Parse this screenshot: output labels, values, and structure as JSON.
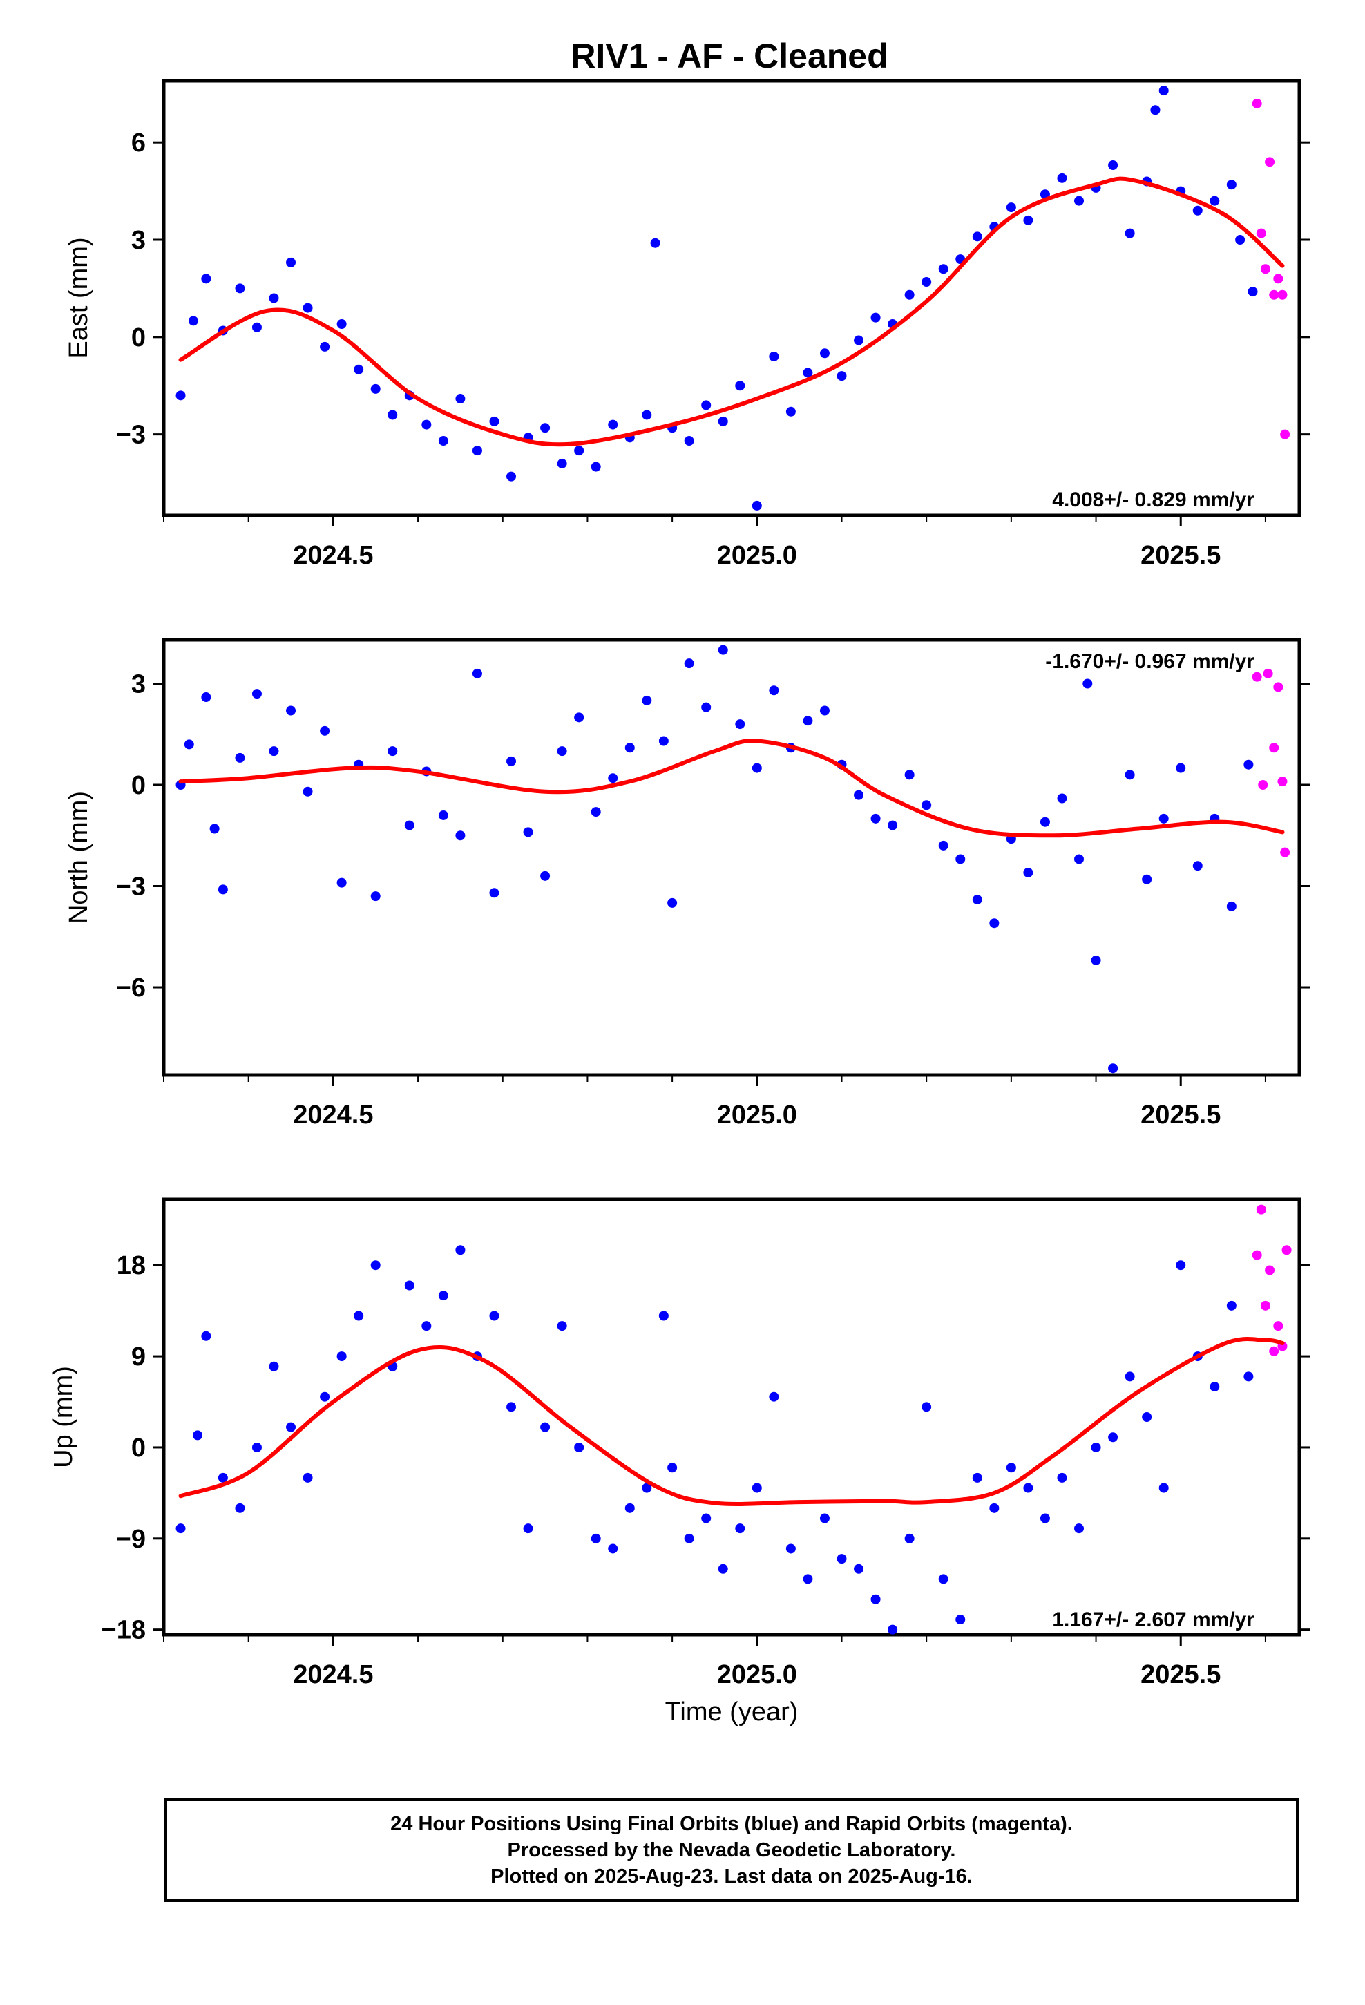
{
  "title": "RIV1  - AF - Cleaned",
  "chart_data": [
    {
      "type": "scatter",
      "panel": "east",
      "ylabel": "East (mm)",
      "xlabel": "",
      "xlim": [
        2024.3,
        2025.64
      ],
      "ylim": [
        -5.5,
        7.9
      ],
      "xticks": [
        2024.5,
        2025.0,
        2025.5
      ],
      "xtick_labels": [
        "2024.5",
        "2025.0",
        "2025.5"
      ],
      "yticks": [
        -3,
        0,
        3,
        6
      ],
      "ytick_labels": [
        "−3",
        "0",
        "3",
        "6"
      ],
      "rate": "4.008+/- 0.829 mm/yr",
      "rate_position": "bottom-right",
      "fit_color": "#ff0000",
      "final_color": "#0000ff",
      "rapid_color": "#ff00ff",
      "fit_curve": {
        "x": [
          2024.32,
          2024.42,
          2024.5,
          2024.6,
          2024.7,
          2024.78,
          2024.9,
          2025.0,
          2025.1,
          2025.2,
          2025.3,
          2025.4,
          2025.45,
          2025.55,
          2025.62
        ],
        "y": [
          -0.7,
          0.8,
          0.2,
          -1.9,
          -3.0,
          -3.3,
          -2.7,
          -1.9,
          -0.8,
          1.1,
          3.7,
          4.7,
          4.8,
          3.8,
          2.2
        ]
      },
      "final_points": {
        "x": [
          2024.32,
          2024.335,
          2024.35,
          2024.37,
          2024.39,
          2024.41,
          2024.43,
          2024.45,
          2024.47,
          2024.49,
          2024.51,
          2024.53,
          2024.55,
          2024.57,
          2024.59,
          2024.61,
          2024.63,
          2024.65,
          2024.67,
          2024.69,
          2024.71,
          2024.73,
          2024.75,
          2024.77,
          2024.79,
          2024.81,
          2024.83,
          2024.85,
          2024.87,
          2024.88,
          2024.9,
          2024.92,
          2024.94,
          2024.96,
          2024.98,
          2025.0,
          2025.02,
          2025.04,
          2025.06,
          2025.08,
          2025.1,
          2025.12,
          2025.14,
          2025.16,
          2025.18,
          2025.2,
          2025.22,
          2025.24,
          2025.26,
          2025.28,
          2025.3,
          2025.32,
          2025.34,
          2025.36,
          2025.38,
          2025.4,
          2025.42,
          2025.44,
          2025.46,
          2025.47,
          2025.48,
          2025.5,
          2025.52,
          2025.54,
          2025.56,
          2025.57,
          2025.585
        ],
        "y": [
          -1.8,
          0.5,
          1.8,
          0.2,
          1.5,
          0.3,
          1.2,
          2.3,
          0.9,
          -0.3,
          0.4,
          -1.0,
          -1.6,
          -2.4,
          -1.8,
          -2.7,
          -3.2,
          -1.9,
          -3.5,
          -2.6,
          -4.3,
          -3.1,
          -2.8,
          -3.9,
          -3.5,
          -4.0,
          -2.7,
          -3.1,
          -2.4,
          2.9,
          -2.8,
          -3.2,
          -2.1,
          -2.6,
          -1.5,
          -5.2,
          -0.6,
          -2.3,
          -1.1,
          -0.5,
          -1.2,
          -0.1,
          0.6,
          0.4,
          1.3,
          1.7,
          2.1,
          2.4,
          3.1,
          3.4,
          4.0,
          3.6,
          4.4,
          4.9,
          4.2,
          4.6,
          5.3,
          3.2,
          4.8,
          7.0,
          7.6,
          4.5,
          3.9,
          4.2,
          4.7,
          3.0,
          1.4
        ]
      },
      "rapid_points": {
        "x": [
          2025.59,
          2025.595,
          2025.6,
          2025.605,
          2025.61,
          2025.615,
          2025.62,
          2025.623
        ],
        "y": [
          7.2,
          3.2,
          2.1,
          5.4,
          1.3,
          1.8,
          1.3,
          -3.0
        ]
      }
    },
    {
      "type": "scatter",
      "panel": "north",
      "ylabel": "North (mm)",
      "xlabel": "",
      "xlim": [
        2024.3,
        2025.64
      ],
      "ylim": [
        -8.6,
        4.3
      ],
      "xticks": [
        2024.5,
        2025.0,
        2025.5
      ],
      "xtick_labels": [
        "2024.5",
        "2025.0",
        "2025.5"
      ],
      "yticks": [
        -6,
        -3,
        0,
        3
      ],
      "ytick_labels": [
        "−6",
        "−3",
        "0",
        "3"
      ],
      "rate": "-1.670+/- 0.967 mm/yr",
      "rate_position": "top-right",
      "fit_color": "#ff0000",
      "final_color": "#0000ff",
      "rapid_color": "#ff00ff",
      "fit_curve": {
        "x": [
          2024.32,
          2024.4,
          2024.52,
          2024.6,
          2024.75,
          2024.85,
          2024.95,
          2025.0,
          2025.08,
          2025.15,
          2025.25,
          2025.35,
          2025.45,
          2025.55,
          2025.62
        ],
        "y": [
          0.1,
          0.2,
          0.5,
          0.4,
          -0.2,
          0.1,
          1.0,
          1.3,
          0.8,
          -0.3,
          -1.3,
          -1.5,
          -1.3,
          -1.1,
          -1.4
        ]
      },
      "final_points": {
        "x": [
          2024.32,
          2024.33,
          2024.35,
          2024.36,
          2024.37,
          2024.39,
          2024.41,
          2024.43,
          2024.45,
          2024.47,
          2024.49,
          2024.51,
          2024.53,
          2024.55,
          2024.57,
          2024.59,
          2024.61,
          2024.63,
          2024.65,
          2024.67,
          2024.69,
          2024.71,
          2024.73,
          2024.75,
          2024.77,
          2024.79,
          2024.81,
          2024.83,
          2024.85,
          2024.87,
          2024.89,
          2024.9,
          2024.92,
          2024.94,
          2024.96,
          2024.98,
          2025.0,
          2025.02,
          2025.04,
          2025.06,
          2025.08,
          2025.1,
          2025.12,
          2025.14,
          2025.16,
          2025.18,
          2025.2,
          2025.22,
          2025.24,
          2025.26,
          2025.28,
          2025.3,
          2025.32,
          2025.34,
          2025.36,
          2025.38,
          2025.39,
          2025.4,
          2025.42,
          2025.44,
          2025.46,
          2025.48,
          2025.5,
          2025.52,
          2025.54,
          2025.56,
          2025.58
        ],
        "y": [
          0.0,
          1.2,
          2.6,
          -1.3,
          -3.1,
          0.8,
          2.7,
          1.0,
          2.2,
          -0.2,
          1.6,
          -2.9,
          0.6,
          -3.3,
          1.0,
          -1.2,
          0.4,
          -0.9,
          -1.5,
          3.3,
          -3.2,
          0.7,
          -1.4,
          -2.7,
          1.0,
          2.0,
          -0.8,
          0.2,
          1.1,
          2.5,
          1.3,
          -3.5,
          3.6,
          2.3,
          4.0,
          1.8,
          0.5,
          2.8,
          1.1,
          1.9,
          2.2,
          0.6,
          -0.3,
          -1.0,
          -1.2,
          0.3,
          -0.6,
          -1.8,
          -2.2,
          -3.4,
          -4.1,
          -1.6,
          -2.6,
          -1.1,
          -0.4,
          -2.2,
          3.0,
          -5.2,
          -8.4,
          0.3,
          -2.8,
          -1.0,
          0.5,
          -2.4,
          -1.0,
          -3.6,
          0.6
        ]
      },
      "rapid_points": {
        "x": [
          2025.59,
          2025.597,
          2025.603,
          2025.61,
          2025.615,
          2025.62,
          2025.623
        ],
        "y": [
          3.2,
          0.0,
          3.3,
          1.1,
          2.9,
          0.1,
          -2.0
        ]
      }
    },
    {
      "type": "scatter",
      "panel": "up",
      "ylabel": "Up (mm)",
      "xlabel": "Time (year)",
      "xlim": [
        2024.3,
        2025.64
      ],
      "ylim": [
        -18.5,
        24.5
      ],
      "xticks": [
        2024.5,
        2025.0,
        2025.5
      ],
      "xtick_labels": [
        "2024.5",
        "2025.0",
        "2025.5"
      ],
      "yticks": [
        -18,
        -9,
        0,
        9,
        18
      ],
      "ytick_labels": [
        "−18",
        "−9",
        "0",
        "9",
        "18"
      ],
      "rate": "1.167+/- 2.607 mm/yr",
      "rate_position": "bottom-right",
      "fit_color": "#ff0000",
      "final_color": "#0000ff",
      "rapid_color": "#ff00ff",
      "fit_curve": {
        "x": [
          2024.32,
          2024.4,
          2024.5,
          2024.6,
          2024.68,
          2024.78,
          2024.88,
          2024.95,
          2025.05,
          2025.15,
          2025.2,
          2025.28,
          2025.35,
          2025.45,
          2025.55,
          2025.6,
          2025.62
        ],
        "y": [
          -4.8,
          -2.5,
          4.5,
          9.6,
          8.5,
          2.0,
          -3.8,
          -5.5,
          -5.4,
          -5.3,
          -5.4,
          -4.5,
          -0.8,
          5.5,
          10.2,
          10.6,
          10.3
        ]
      },
      "final_points": {
        "x": [
          2024.32,
          2024.34,
          2024.35,
          2024.37,
          2024.39,
          2024.41,
          2024.43,
          2024.45,
          2024.47,
          2024.49,
          2024.51,
          2024.53,
          2024.55,
          2024.57,
          2024.59,
          2024.61,
          2024.63,
          2024.65,
          2024.67,
          2024.69,
          2024.71,
          2024.73,
          2024.75,
          2024.77,
          2024.79,
          2024.81,
          2024.83,
          2024.85,
          2024.87,
          2024.89,
          2024.9,
          2024.92,
          2024.94,
          2024.96,
          2024.98,
          2025.0,
          2025.02,
          2025.04,
          2025.06,
          2025.08,
          2025.1,
          2025.12,
          2025.14,
          2025.16,
          2025.18,
          2025.2,
          2025.22,
          2025.24,
          2025.26,
          2025.28,
          2025.3,
          2025.32,
          2025.34,
          2025.36,
          2025.38,
          2025.4,
          2025.42,
          2025.44,
          2025.46,
          2025.48,
          2025.5,
          2025.52,
          2025.54,
          2025.56,
          2025.58
        ],
        "y": [
          -8.0,
          1.2,
          11.0,
          -3.0,
          -6.0,
          0.0,
          8.0,
          2.0,
          -3.0,
          5.0,
          9.0,
          13.0,
          18.0,
          8.0,
          16.0,
          12.0,
          15.0,
          19.5,
          9.0,
          13.0,
          4.0,
          -8.0,
          2.0,
          12.0,
          0.0,
          -9.0,
          -10.0,
          -6.0,
          -4.0,
          13.0,
          -2.0,
          -9.0,
          -7.0,
          -12.0,
          -8.0,
          -4.0,
          5.0,
          -10.0,
          -13.0,
          -7.0,
          -11.0,
          -12.0,
          -15.0,
          -18.0,
          -9.0,
          4.0,
          -13.0,
          -17.0,
          -3.0,
          -6.0,
          -2.0,
          -4.0,
          -7.0,
          -3.0,
          -8.0,
          0.0,
          1.0,
          7.0,
          3.0,
          -4.0,
          18.0,
          9.0,
          6.0,
          14.0,
          7.0
        ]
      },
      "rapid_points": {
        "x": [
          2025.59,
          2025.595,
          2025.6,
          2025.605,
          2025.61,
          2025.615,
          2025.62,
          2025.625
        ],
        "y": [
          19.0,
          23.5,
          14.0,
          17.5,
          9.5,
          12.0,
          10.0,
          19.5
        ]
      }
    }
  ],
  "footer": {
    "line1": "24 Hour Positions Using Final Orbits (blue) and Rapid Orbits (magenta).",
    "line2": "Processed by the Nevada Geodetic Laboratory.",
    "line3": "Plotted on 2025-Aug-23. Last data on 2025-Aug-16."
  }
}
